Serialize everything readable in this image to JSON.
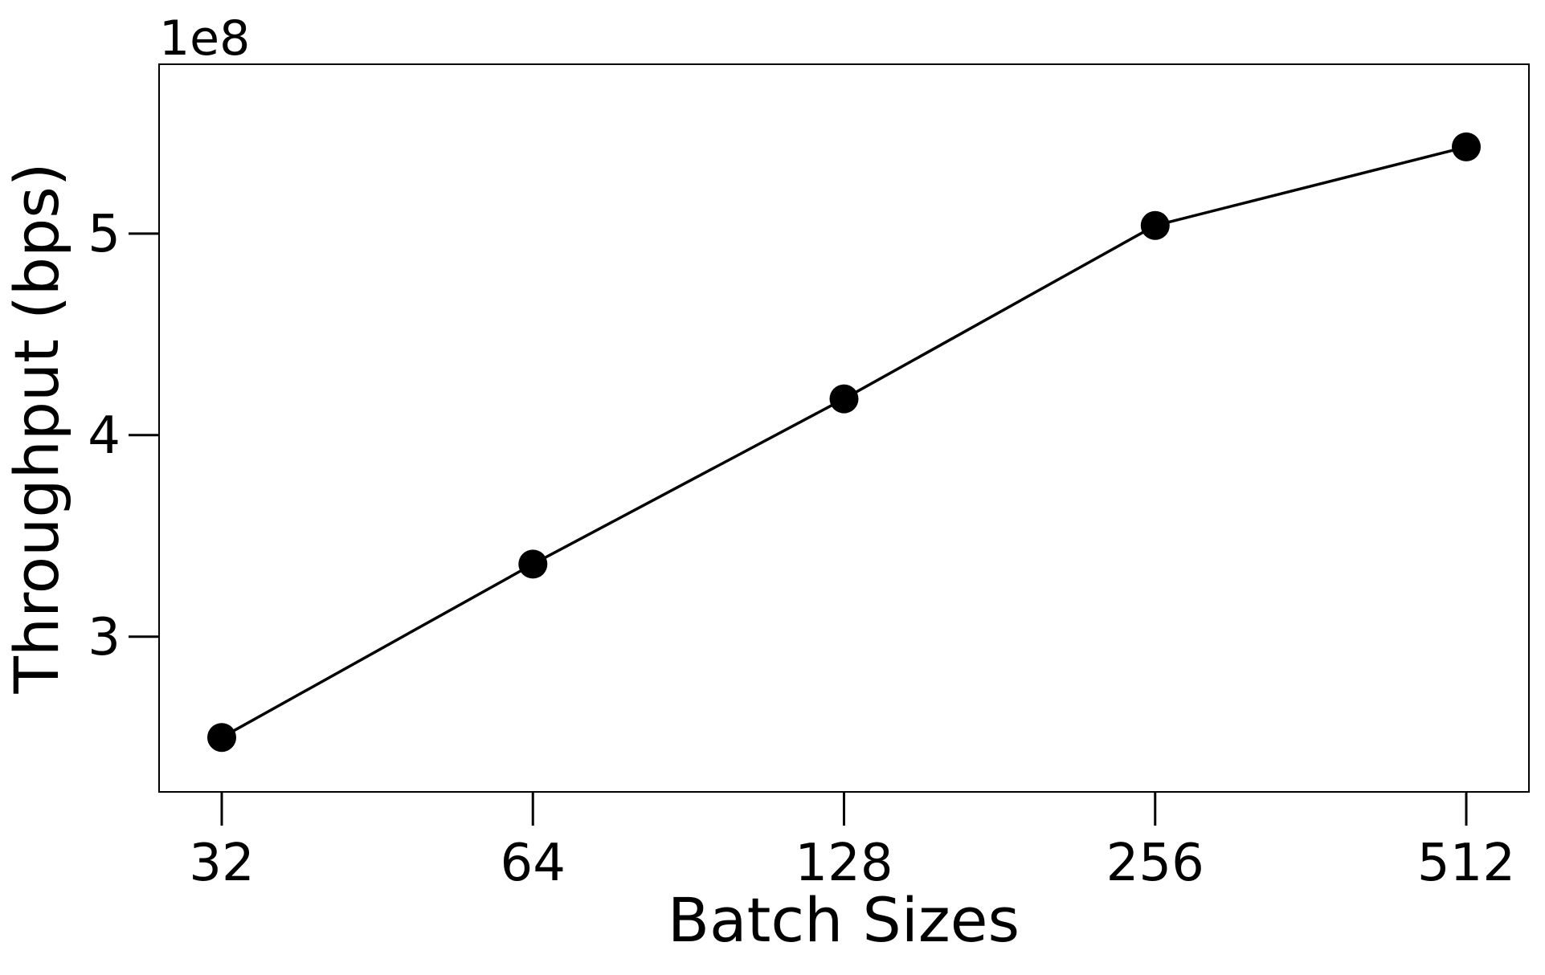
{
  "chart_data": {
    "type": "line",
    "title": "",
    "xlabel": "Batch Sizes",
    "ylabel": "Throughput (bps)",
    "y_offset_label": "1e8",
    "x_scale": "log2",
    "categories": [
      "32",
      "64",
      "128",
      "256",
      "512"
    ],
    "x": [
      32,
      64,
      128,
      256,
      512
    ],
    "series": [
      {
        "values": [
          250000000,
          336000000,
          418000000,
          504000000,
          543000000
        ]
      }
    ],
    "yticks": [
      300000000,
      400000000,
      500000000
    ],
    "ytick_labels": [
      "3",
      "4",
      "5"
    ],
    "ylim": [
      223000000,
      584000000
    ],
    "grid": false,
    "legend": "none",
    "colors": {
      "line": "#000000",
      "marker": "#000000",
      "axes": "#000000",
      "background": "#ffffff"
    }
  }
}
